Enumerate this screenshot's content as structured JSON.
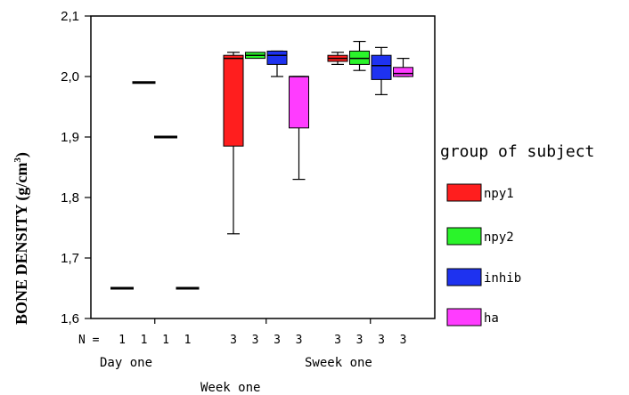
{
  "chart_data": {
    "type": "boxplot",
    "ylabel": "BONE DENSITY (g/cm",
    "ylabel_sup": "3",
    "ylabel_close": ")",
    "ylim": [
      1.6,
      2.1
    ],
    "yticks": [
      "1,6",
      "1,7",
      "1,8",
      "1,9",
      "2,0",
      "2,1"
    ],
    "ytick_values": [
      1.6,
      1.7,
      1.8,
      1.9,
      2.0,
      2.1
    ],
    "n_prefix": "N =",
    "groups": [
      {
        "label": "Day one",
        "n": [
          "1",
          "1",
          "1",
          "1"
        ]
      },
      {
        "label": "Week one",
        "n": [
          "3",
          "3",
          "3",
          "3"
        ]
      },
      {
        "label": "Sweek one",
        "n": [
          "3",
          "3",
          "3",
          "3"
        ]
      }
    ],
    "legend": {
      "title": "group of subject",
      "placement": "right",
      "items": [
        {
          "name": "npy1",
          "color": "#ff1e1e"
        },
        {
          "name": "npy2",
          "color": "#2af42a"
        },
        {
          "name": "inhib",
          "color": "#1e32f0"
        },
        {
          "name": "ha",
          "color": "#ff3cff"
        }
      ]
    },
    "series": [
      {
        "name": "npy1",
        "boxes": [
          {
            "group": "Day one",
            "min": 1.65,
            "q1": 1.65,
            "median": 1.65,
            "q3": 1.65,
            "max": 1.65
          },
          {
            "group": "Week one",
            "min": 1.74,
            "q1": 1.885,
            "median": 2.03,
            "q3": 2.035,
            "max": 2.04
          },
          {
            "group": "Sweek one",
            "min": 2.02,
            "q1": 2.025,
            "median": 2.03,
            "q3": 2.035,
            "max": 2.04
          }
        ]
      },
      {
        "name": "npy2",
        "boxes": [
          {
            "group": "Day one",
            "min": 1.99,
            "q1": 1.99,
            "median": 1.99,
            "q3": 1.99,
            "max": 1.99
          },
          {
            "group": "Week one",
            "min": 2.03,
            "q1": 2.03,
            "median": 2.035,
            "q3": 2.04,
            "max": 2.04
          },
          {
            "group": "Sweek one",
            "min": 2.01,
            "q1": 2.02,
            "median": 2.03,
            "q3": 2.042,
            "max": 2.058
          }
        ]
      },
      {
        "name": "inhib",
        "boxes": [
          {
            "group": "Day one",
            "min": 1.9,
            "q1": 1.9,
            "median": 1.9,
            "q3": 1.9,
            "max": 1.9
          },
          {
            "group": "Week one",
            "min": 2.0,
            "q1": 2.02,
            "median": 2.035,
            "q3": 2.042,
            "max": 2.042
          },
          {
            "group": "Sweek one",
            "min": 1.97,
            "q1": 1.995,
            "median": 2.018,
            "q3": 2.035,
            "max": 2.048
          }
        ]
      },
      {
        "name": "ha",
        "boxes": [
          {
            "group": "Day one",
            "min": 1.65,
            "q1": 1.65,
            "median": 1.65,
            "q3": 1.65,
            "max": 1.65
          },
          {
            "group": "Week one",
            "min": 1.83,
            "q1": 1.915,
            "median": 2.0,
            "q3": 2.0,
            "max": 2.0
          },
          {
            "group": "Sweek one",
            "min": 2.0,
            "q1": 2.0,
            "median": 2.005,
            "q3": 2.015,
            "max": 2.03
          }
        ]
      }
    ]
  }
}
